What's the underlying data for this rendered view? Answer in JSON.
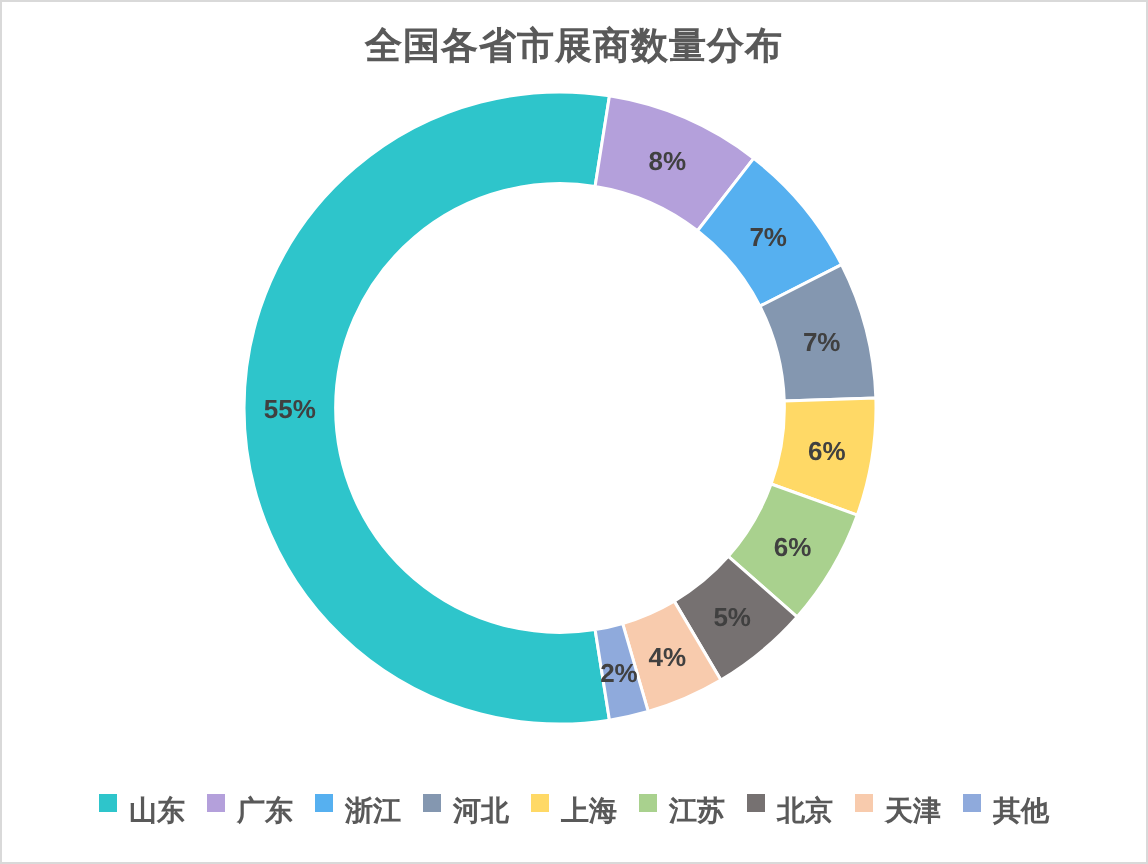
{
  "chart_data": {
    "type": "donut",
    "title": "全国各省市展商数量分布",
    "categories": [
      "山东",
      "广东",
      "浙江",
      "河北",
      "上海",
      "江苏",
      "北京",
      "天津",
      "其他"
    ],
    "values": [
      55,
      8,
      7,
      7,
      6,
      6,
      5,
      4,
      2
    ],
    "colors": [
      "#2ec5cb",
      "#b4a0db",
      "#56b0f0",
      "#8497b0",
      "#ffd966",
      "#a9d18e",
      "#767171",
      "#f8cbad",
      "#8faadc"
    ],
    "value_labels": [
      "55%",
      "8%",
      "7%",
      "7%",
      "6%",
      "6%",
      "5%",
      "4%",
      "2%"
    ],
    "legend": "bottom"
  }
}
